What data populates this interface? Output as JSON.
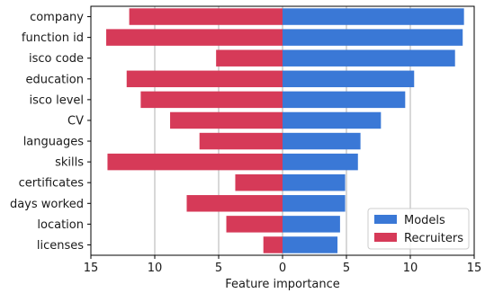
{
  "chart_data": {
    "type": "bar",
    "orientation": "horizontal-diverging",
    "categories": [
      "company",
      "function id",
      "isco code",
      "education",
      "isco level",
      "CV",
      "languages",
      "skills",
      "certificates",
      "days worked",
      "location",
      "licenses"
    ],
    "series": [
      {
        "name": "Models",
        "color": "#3a78d6",
        "values": [
          14.2,
          14.1,
          13.5,
          10.3,
          9.6,
          7.7,
          6.1,
          5.9,
          4.9,
          4.9,
          4.5,
          4.3
        ]
      },
      {
        "name": "Recruiters",
        "color": "#d63a58",
        "values": [
          -12.0,
          -13.8,
          -5.2,
          -12.2,
          -11.1,
          -8.8,
          -6.5,
          -13.7,
          -3.7,
          -7.5,
          -4.4,
          -1.5
        ]
      }
    ],
    "xlabel": "Feature importance",
    "xlim": [
      -15,
      15
    ],
    "xticks": [
      -15,
      -10,
      -5,
      0,
      5,
      10,
      15
    ],
    "xtick_labels": [
      "15",
      "10",
      "5",
      "0",
      "5",
      "10",
      "15"
    ],
    "grid": "vertical",
    "legend": {
      "position": "lower-right",
      "entries": [
        "Models",
        "Recruiters"
      ]
    }
  }
}
